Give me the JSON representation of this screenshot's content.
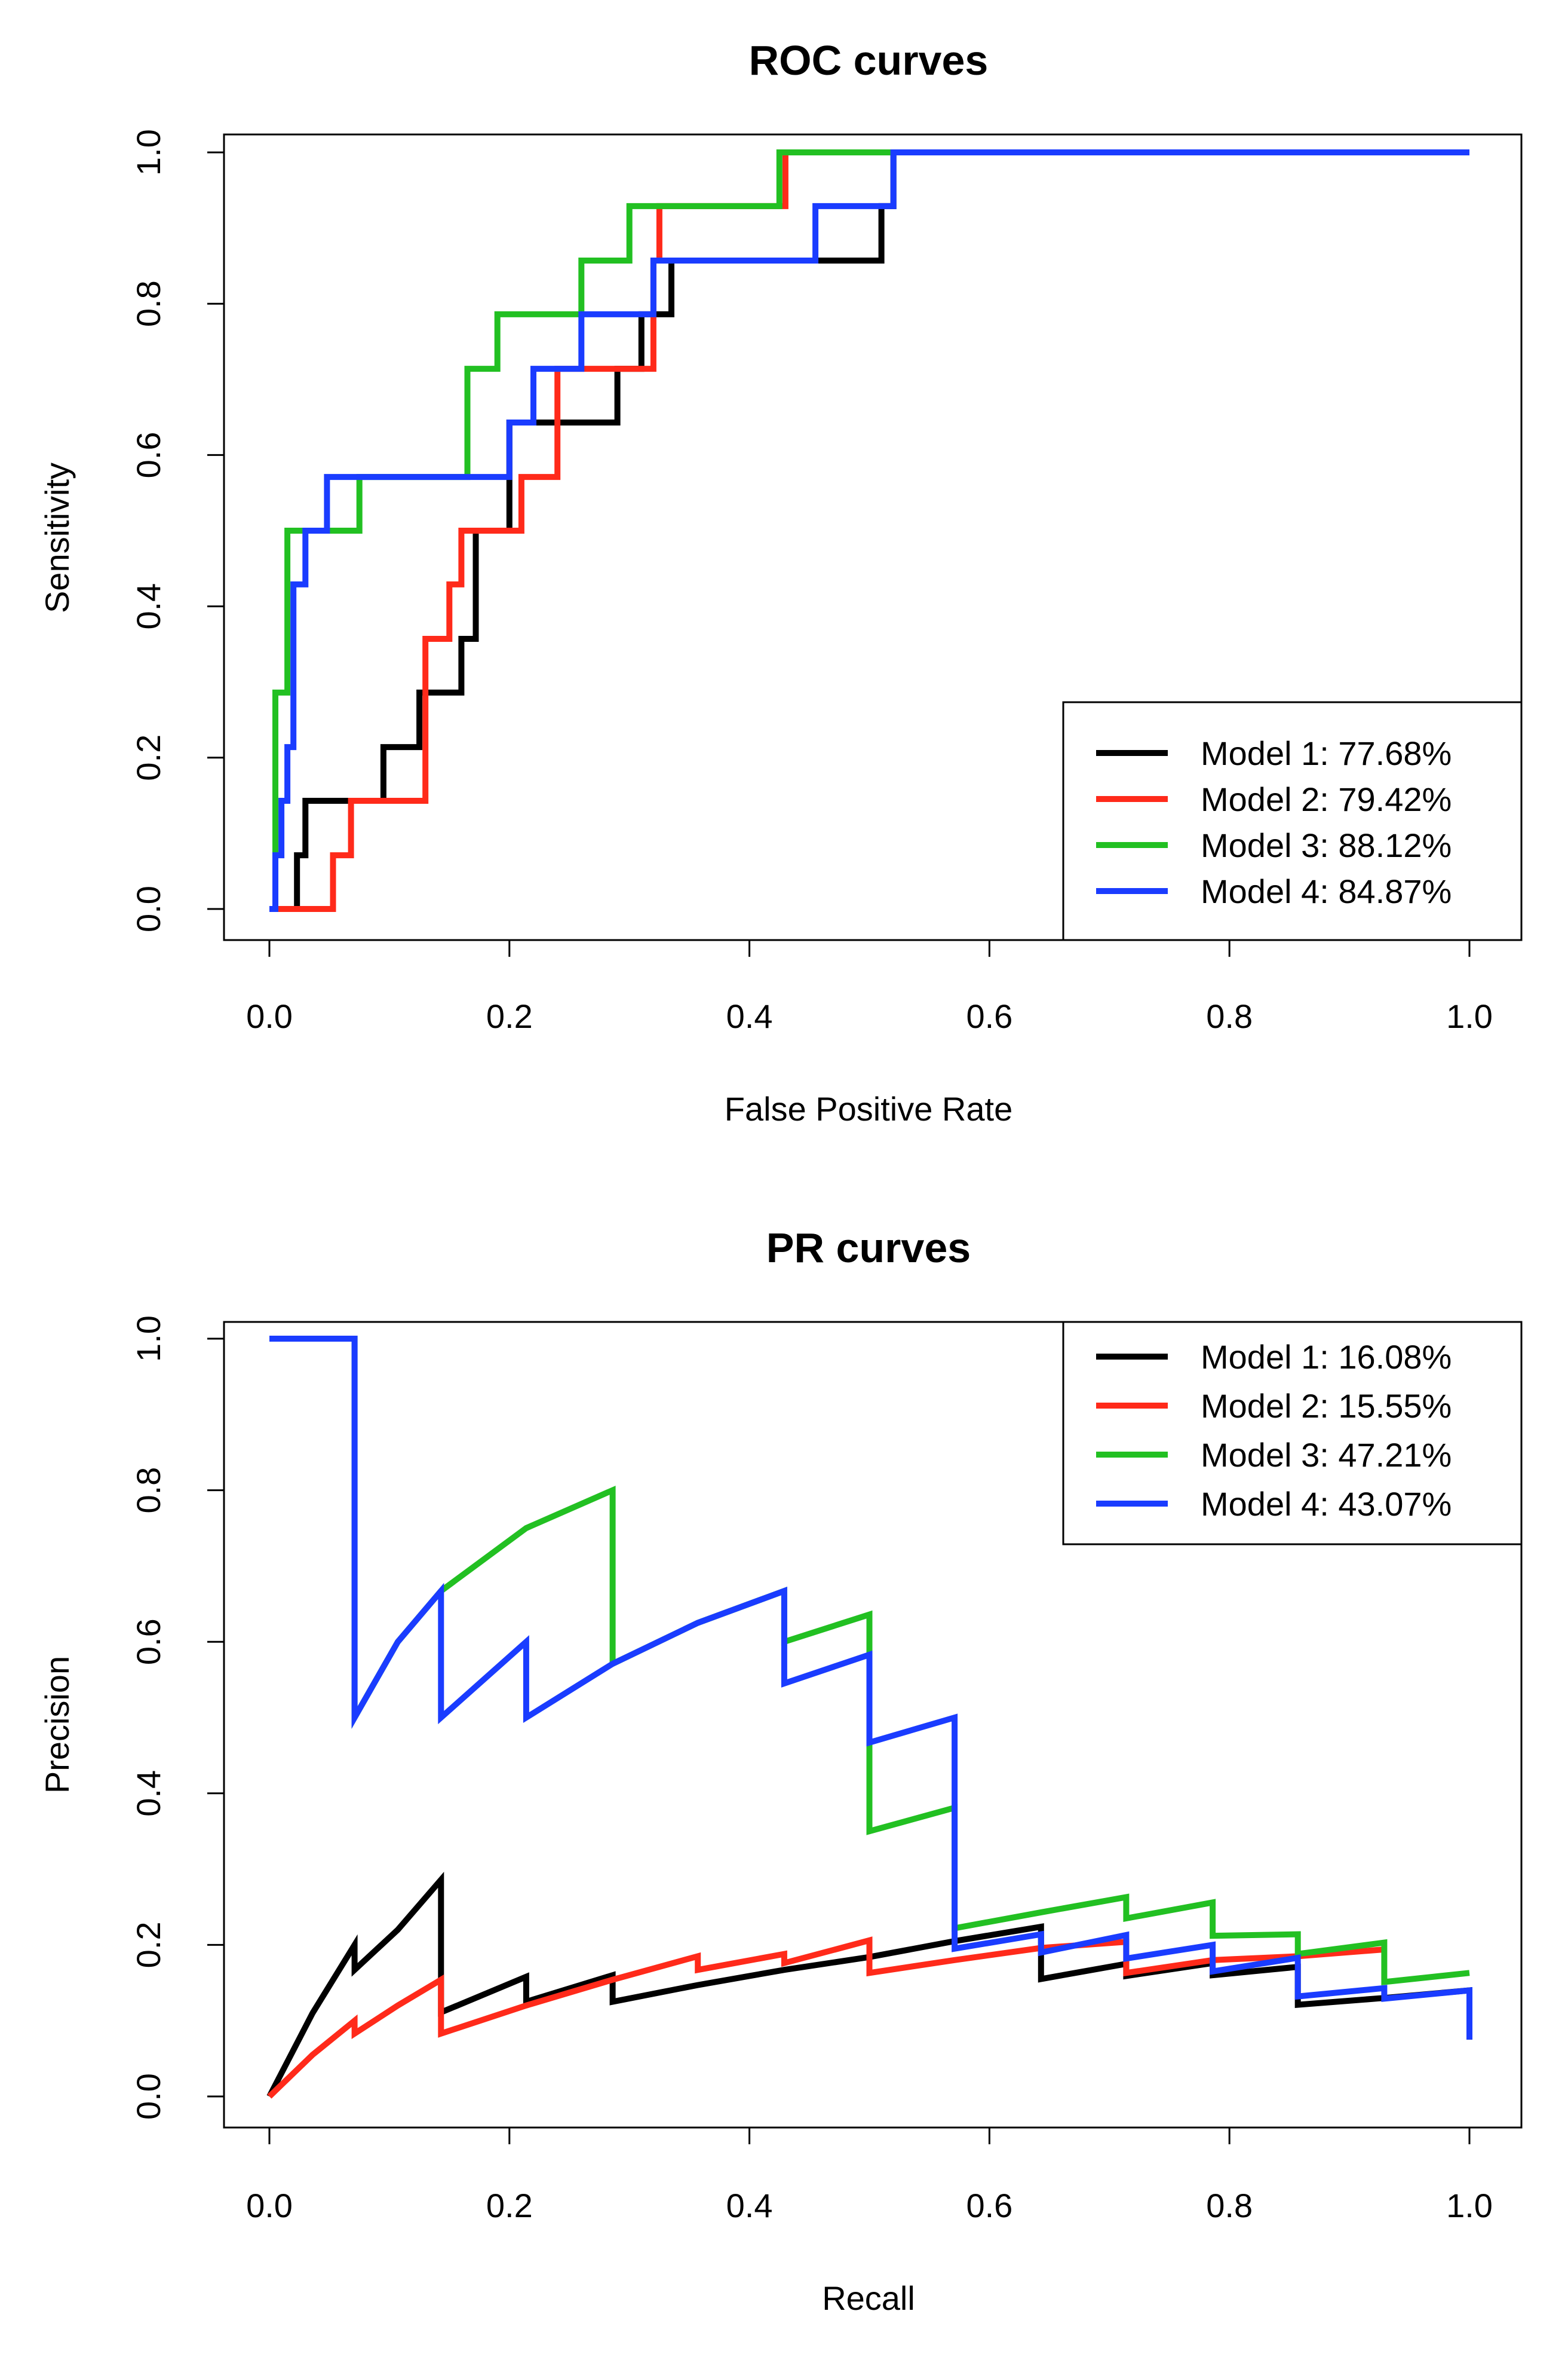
{
  "chart_data": [
    {
      "type": "line",
      "title": "ROC curves",
      "xlabel": "False Positive Rate",
      "ylabel": "Sensitivity",
      "xlim": [
        0,
        1
      ],
      "ylim": [
        0,
        1
      ],
      "xticks": [
        "0.0",
        "0.2",
        "0.4",
        "0.6",
        "0.8",
        "1.0"
      ],
      "yticks": [
        "0.0",
        "0.2",
        "0.4",
        "0.6",
        "0.8",
        "1.0"
      ],
      "legend_position": "bottom-right",
      "series": [
        {
          "name": "Model 1: 77.68%",
          "color": "#000000",
          "x": [
            0,
            0.023,
            0.023,
            0.03,
            0.03,
            0.095,
            0.095,
            0.125,
            0.125,
            0.16,
            0.16,
            0.172,
            0.172,
            0.2,
            0.2,
            0.29,
            0.29,
            0.31,
            0.31,
            0.32,
            0.32,
            0.335,
            0.335,
            0.51,
            0.51,
            0.52,
            0.52,
            1.0
          ],
          "y": [
            0,
            0,
            0.071,
            0.071,
            0.143,
            0.143,
            0.214,
            0.214,
            0.286,
            0.286,
            0.357,
            0.357,
            0.5,
            0.5,
            0.643,
            0.643,
            0.714,
            0.714,
            0.786,
            0.786,
            0.786,
            0.786,
            0.857,
            0.857,
            0.929,
            0.929,
            1.0,
            1.0
          ]
        },
        {
          "name": "Model 2: 79.42%",
          "color": "#ff2a1a",
          "x": [
            0,
            0.053,
            0.053,
            0.068,
            0.068,
            0.13,
            0.13,
            0.15,
            0.15,
            0.16,
            0.16,
            0.21,
            0.21,
            0.24,
            0.24,
            0.32,
            0.32,
            0.325,
            0.325,
            0.43,
            0.43,
            0.52,
            0.52,
            1.0
          ],
          "y": [
            0,
            0,
            0.071,
            0.071,
            0.143,
            0.143,
            0.357,
            0.357,
            0.429,
            0.429,
            0.5,
            0.5,
            0.571,
            0.571,
            0.714,
            0.714,
            0.857,
            0.857,
            0.929,
            0.929,
            1.0,
            1.0,
            1.0,
            1.0
          ]
        },
        {
          "name": "Model 3: 88.12%",
          "color": "#22c022",
          "x": [
            0,
            0.005,
            0.005,
            0.015,
            0.015,
            0.025,
            0.025,
            0.075,
            0.075,
            0.165,
            0.165,
            0.19,
            0.19,
            0.26,
            0.26,
            0.3,
            0.3,
            0.425,
            0.425,
            1.0
          ],
          "y": [
            0,
            0,
            0.286,
            0.286,
            0.5,
            0.5,
            0.5,
            0.5,
            0.571,
            0.571,
            0.714,
            0.714,
            0.786,
            0.786,
            0.857,
            0.857,
            0.929,
            0.929,
            1.0,
            1.0
          ]
        },
        {
          "name": "Model 4: 84.87%",
          "color": "#1a3cff",
          "x": [
            0,
            0.005,
            0.005,
            0.01,
            0.01,
            0.015,
            0.015,
            0.02,
            0.02,
            0.03,
            0.03,
            0.048,
            0.048,
            0.2,
            0.2,
            0.22,
            0.22,
            0.26,
            0.26,
            0.32,
            0.32,
            0.455,
            0.455,
            0.52,
            0.52,
            1.0
          ],
          "y": [
            0,
            0,
            0.071,
            0.071,
            0.143,
            0.143,
            0.214,
            0.214,
            0.429,
            0.429,
            0.5,
            0.5,
            0.571,
            0.571,
            0.643,
            0.643,
            0.714,
            0.714,
            0.786,
            0.786,
            0.857,
            0.857,
            0.929,
            0.929,
            1.0,
            1.0
          ]
        }
      ]
    },
    {
      "type": "line",
      "title": "PR curves",
      "xlabel": "Recall",
      "ylabel": "Precision",
      "xlim": [
        0,
        1
      ],
      "ylim": [
        0,
        1
      ],
      "xticks": [
        "0.0",
        "0.2",
        "0.4",
        "0.6",
        "0.8",
        "1.0"
      ],
      "yticks": [
        "0.0",
        "0.2",
        "0.4",
        "0.6",
        "0.8",
        "1.0"
      ],
      "legend_position": "top-right",
      "series": [
        {
          "name": "Model 1: 16.08%",
          "color": "#000000",
          "x": [
            0,
            0.036,
            0.071,
            0.071,
            0.107,
            0.143,
            0.143,
            0.214,
            0.214,
            0.286,
            0.286,
            0.357,
            0.429,
            0.5,
            0.571,
            0.643,
            0.643,
            0.714,
            0.714,
            0.786,
            0.786,
            0.857,
            0.857,
            0.929,
            1.0,
            1.0
          ],
          "y": [
            0,
            0.11,
            0.2,
            0.167,
            0.22,
            0.286,
            0.111,
            0.158,
            0.125,
            0.16,
            0.125,
            0.147,
            0.167,
            0.184,
            0.205,
            0.224,
            0.155,
            0.175,
            0.159,
            0.176,
            0.16,
            0.171,
            0.121,
            0.13,
            0.14,
            0.075
          ]
        },
        {
          "name": "Model 2: 15.55%",
          "color": "#ff2a1a",
          "x": [
            0,
            0.036,
            0.071,
            0.071,
            0.107,
            0.143,
            0.143,
            0.214,
            0.286,
            0.357,
            0.357,
            0.429,
            0.429,
            0.5,
            0.5,
            0.571,
            0.643,
            0.714,
            0.714,
            0.786,
            0.857,
            0.929
          ],
          "y": [
            0,
            0.055,
            0.1,
            0.083,
            0.12,
            0.154,
            0.083,
            0.12,
            0.154,
            0.185,
            0.167,
            0.188,
            0.176,
            0.206,
            0.163,
            0.18,
            0.196,
            0.204,
            0.163,
            0.18,
            0.185,
            0.194
          ]
        },
        {
          "name": "Model 3: 47.21%",
          "color": "#22c022",
          "x": [
            0,
            0.071,
            0.071,
            0.107,
            0.143,
            0.143,
            0.214,
            0.286,
            0.286,
            0.357,
            0.429,
            0.429,
            0.5,
            0.5,
            0.571,
            0.571,
            0.643,
            0.714,
            0.714,
            0.786,
            0.786,
            0.857,
            0.857,
            0.929,
            0.929,
            1.0
          ],
          "y": [
            1.0,
            1.0,
            0.5,
            0.6,
            0.667,
            0.667,
            0.75,
            0.8,
            0.571,
            0.625,
            0.667,
            0.6,
            0.636,
            0.35,
            0.381,
            0.222,
            0.243,
            0.263,
            0.235,
            0.256,
            0.212,
            0.214,
            0.188,
            0.203,
            0.151,
            0.163
          ]
        },
        {
          "name": "Model 4: 43.07%",
          "color": "#1a3cff",
          "x": [
            0,
            0.071,
            0.071,
            0.107,
            0.143,
            0.143,
            0.214,
            0.214,
            0.286,
            0.357,
            0.429,
            0.429,
            0.5,
            0.5,
            0.571,
            0.571,
            0.643,
            0.643,
            0.714,
            0.714,
            0.786,
            0.786,
            0.857,
            0.857,
            0.929,
            0.929,
            1.0,
            1.0
          ],
          "y": [
            1.0,
            1.0,
            0.5,
            0.6,
            0.667,
            0.5,
            0.6,
            0.5,
            0.571,
            0.625,
            0.667,
            0.545,
            0.583,
            0.467,
            0.5,
            0.195,
            0.214,
            0.19,
            0.213,
            0.182,
            0.2,
            0.165,
            0.183,
            0.132,
            0.143,
            0.129,
            0.14,
            0.075
          ]
        }
      ]
    }
  ]
}
